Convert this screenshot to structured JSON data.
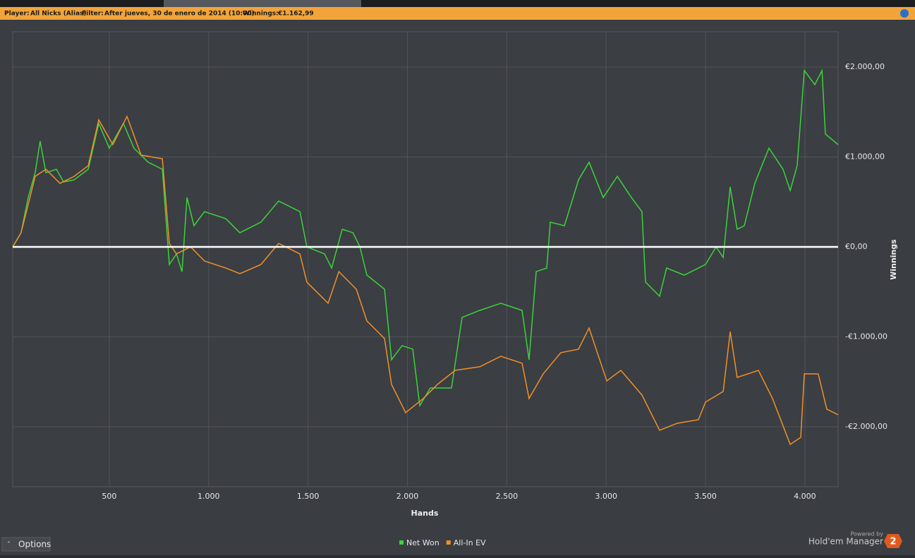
{
  "header": {
    "player_label": "Player:",
    "player": "All Nicks (Alias)",
    "filter_label": "Filter:",
    "filter": "After jueves, 30 de enero de 2014 (10:00)",
    "winnings_label": "Winnings:",
    "winnings": "€1.162,99"
  },
  "footer": {
    "options": "Options",
    "powered_by": "Powered by",
    "brand": "Hold'em Manager",
    "brand_number": "2"
  },
  "chart_data": {
    "type": "line",
    "xlabel": "Hands",
    "ylabel": "Winnings",
    "xlim": [
      14,
      4167
    ],
    "ylim": [
      -2667,
      2392
    ],
    "xticks": [
      {
        "value": 500,
        "label": "500"
      },
      {
        "value": 1000,
        "label": "1.000"
      },
      {
        "value": 1500,
        "label": "1.500"
      },
      {
        "value": 2000,
        "label": "2.000"
      },
      {
        "value": 2500,
        "label": "2.500"
      },
      {
        "value": 3000,
        "label": "3.000"
      },
      {
        "value": 3500,
        "label": "3.500"
      },
      {
        "value": 4000,
        "label": "4.000"
      }
    ],
    "yticks": [
      {
        "value": 2000,
        "label": "€2.000,00"
      },
      {
        "value": 1000,
        "label": "€1.000,00"
      },
      {
        "value": 0,
        "label": "€0,00"
      },
      {
        "value": -1000,
        "label": "-€1.000,00"
      },
      {
        "value": -2000,
        "label": "-€2.000,00"
      }
    ],
    "grid": true,
    "series": [
      {
        "name": "Net Won",
        "color": "#3ad43a",
        "x": [
          14,
          56,
          92,
          127,
          152,
          181,
          234,
          270,
          323,
          394,
          447,
          500,
          571,
          624,
          696,
          767,
          802,
          838,
          866,
          891,
          926,
          979,
          1086,
          1157,
          1263,
          1352,
          1459,
          1494,
          1583,
          1619,
          1672,
          1726,
          1761,
          1796,
          1885,
          1920,
          1973,
          2027,
          2062,
          2115,
          2222,
          2275,
          2364,
          2470,
          2577,
          2612,
          2648,
          2701,
          2719,
          2790,
          2861,
          2914,
          2985,
          3056,
          3127,
          3180,
          3198,
          3269,
          3304,
          3393,
          3500,
          3553,
          3589,
          3624,
          3659,
          3695,
          3748,
          3819,
          3890,
          3926,
          3961,
          3997,
          4050,
          4086,
          4103,
          4167
        ],
        "values": [
          0,
          157,
          549,
          824,
          1176,
          824,
          863,
          722,
          745,
          863,
          1373,
          1098,
          1373,
          1098,
          941,
          863,
          -196,
          -78,
          -275,
          549,
          235,
          392,
          314,
          157,
          275,
          510,
          392,
          0,
          -78,
          -235,
          196,
          157,
          0,
          -314,
          -471,
          -1255,
          -1098,
          -1137,
          -1765,
          -1569,
          -1569,
          -784,
          -706,
          -627,
          -706,
          -1255,
          -275,
          -235,
          275,
          235,
          745,
          941,
          549,
          784,
          549,
          392,
          -392,
          -549,
          -235,
          -314,
          -196,
          0,
          -118,
          667,
          196,
          235,
          706,
          1098,
          863,
          627,
          902,
          1961,
          1804,
          1961,
          1255,
          1137
        ]
      },
      {
        "name": "All-In EV",
        "color": "#f0902a",
        "x": [
          14,
          56,
          92,
          127,
          181,
          252,
          323,
          394,
          447,
          518,
          589,
          660,
          767,
          802,
          838,
          909,
          979,
          1086,
          1157,
          1263,
          1352,
          1459,
          1494,
          1601,
          1655,
          1743,
          1796,
          1885,
          1920,
          1991,
          2080,
          2151,
          2240,
          2364,
          2470,
          2577,
          2612,
          2683,
          2772,
          2861,
          2914,
          3003,
          3074,
          3180,
          3269,
          3358,
          3464,
          3500,
          3589,
          3624,
          3659,
          3766,
          3837,
          3926,
          3979,
          3997,
          4067,
          4110,
          4167
        ],
        "values": [
          0,
          157,
          471,
          784,
          863,
          706,
          784,
          902,
          1412,
          1137,
          1451,
          1020,
          980,
          39,
          -78,
          0,
          -157,
          -235,
          -298,
          -196,
          39,
          -78,
          -392,
          -627,
          -275,
          -471,
          -824,
          -1020,
          -1529,
          -1843,
          -1686,
          -1529,
          -1373,
          -1333,
          -1216,
          -1294,
          -1686,
          -1412,
          -1176,
          -1137,
          -902,
          -1490,
          -1373,
          -1647,
          -2039,
          -1961,
          -1922,
          -1725,
          -1608,
          -941,
          -1451,
          -1373,
          -1686,
          -2196,
          -2118,
          -1412,
          -1412,
          -1804,
          -1867
        ]
      }
    ]
  }
}
